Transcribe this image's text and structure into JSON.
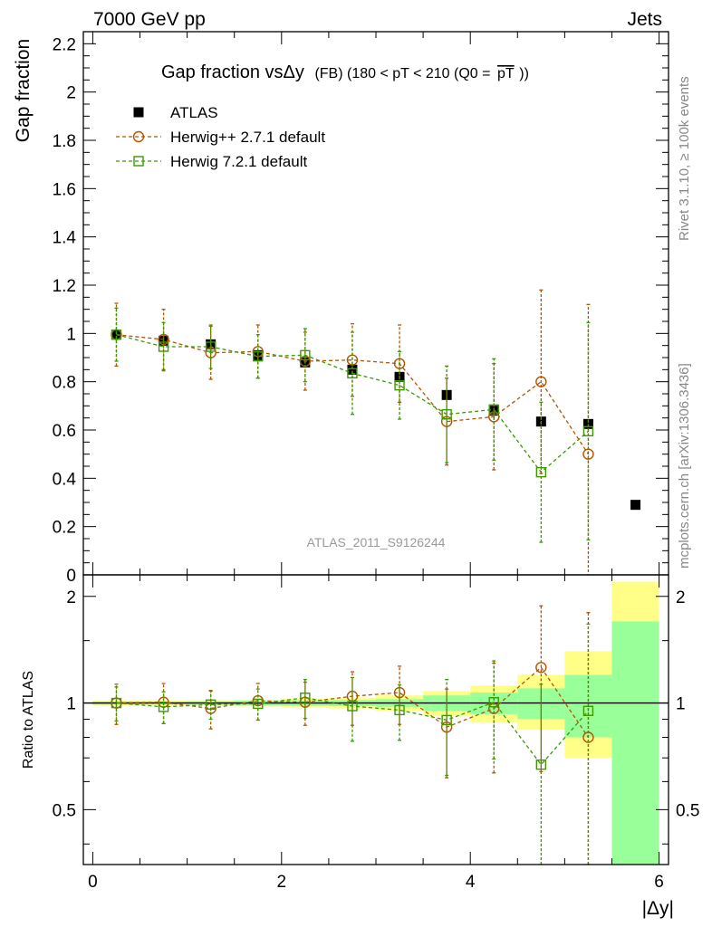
{
  "header": {
    "left": "7000 GeV pp",
    "right": "Jets"
  },
  "side_labels": {
    "rivet": "Rivet 3.1.10, ≥ 100k events",
    "mcplots": "mcplots.cern.ch [arXiv:1306.3436]"
  },
  "watermark": "ATLAS_2011_S9126244",
  "colors": {
    "data": "#000000",
    "herwigpp": "#b35400",
    "herwig7": "#3a9a00",
    "band_inner": "#99ff99",
    "band_outer": "#ffff88"
  },
  "chart_data": [
    {
      "type": "scatter",
      "panel": "main",
      "title_main": "Gap fraction vsΔy",
      "title_sub": "(FB) (180 < pT < 210 (Q0 =",
      "title_overline": "pT",
      "title_end": "))",
      "ylabel": "Gap fraction",
      "ylim": [
        0,
        2.25
      ],
      "xlim": [
        -0.1,
        6.1
      ],
      "yticks": [
        0,
        0.2,
        0.4,
        0.6,
        0.8,
        1,
        1.2,
        1.4,
        1.6,
        1.8,
        2,
        2.2
      ],
      "ytick_labels": [
        "0",
        "0.2",
        "0.4",
        "0.6",
        "0.8",
        "1",
        "1.2",
        "1.4",
        "1.6",
        "1.8",
        "2",
        "2.2"
      ],
      "legend_position": "top-left",
      "x": [
        0.25,
        0.75,
        1.25,
        1.75,
        2.25,
        2.75,
        3.25,
        3.75,
        4.25,
        4.75,
        5.25,
        5.75
      ],
      "series": [
        {
          "name": "ATLAS",
          "marker": "filled-square",
          "values": [
            0.995,
            0.97,
            0.955,
            0.91,
            0.88,
            0.85,
            0.82,
            0.745,
            0.68,
            0.635,
            0.625,
            0.29
          ],
          "err": [
            0.01,
            0.01,
            0.01,
            0.01,
            0.01,
            0.01,
            0.01,
            0.015,
            0.015,
            0.015,
            0.02,
            0.015
          ]
        },
        {
          "name": "Herwig++ 2.7.1 default",
          "marker": "open-circle",
          "values": [
            0.995,
            0.975,
            0.92,
            0.925,
            0.885,
            0.89,
            0.875,
            0.635,
            0.655,
            0.8,
            0.5
          ],
          "err": [
            0.13,
            0.125,
            0.11,
            0.11,
            0.12,
            0.15,
            0.16,
            0.18,
            0.22,
            0.38,
            0.62
          ]
        },
        {
          "name": "Herwig 7.2.1 default",
          "marker": "open-square",
          "values": [
            0.995,
            0.945,
            0.945,
            0.905,
            0.91,
            0.835,
            0.785,
            0.665,
            0.685,
            0.425,
            0.595
          ],
          "err": [
            0.11,
            0.1,
            0.09,
            0.09,
            0.11,
            0.17,
            0.14,
            0.2,
            0.21,
            0.29,
            0.45
          ]
        }
      ]
    },
    {
      "type": "scatter",
      "panel": "ratio",
      "ylabel": "Ratio to ATLAS",
      "xlabel": "|Δy|",
      "ylim": [
        0.35,
        2.3
      ],
      "log_y": true,
      "xlim": [
        -0.1,
        6.1
      ],
      "yticks": [
        0.5,
        1,
        2
      ],
      "ytick_labels": [
        "0.5",
        "1",
        "2"
      ],
      "xticks": [
        0,
        2,
        4,
        6
      ],
      "xtick_labels": [
        "0",
        "2",
        "4",
        "6"
      ],
      "x_edges": [
        0,
        0.5,
        1,
        1.5,
        2,
        2.5,
        3,
        3.5,
        4,
        4.5,
        5,
        5.5,
        6
      ],
      "band_inner": [
        0.01,
        0.01,
        0.012,
        0.015,
        0.018,
        0.02,
        0.025,
        0.05,
        0.07,
        0.1,
        0.2,
        0.7
      ],
      "band_outer": [
        0.015,
        0.016,
        0.018,
        0.022,
        0.028,
        0.035,
        0.05,
        0.08,
        0.12,
        0.2,
        0.4,
        1.2
      ],
      "band_outer_low": [
        0.015,
        0.016,
        0.018,
        0.022,
        0.028,
        0.035,
        0.05,
        0.08,
        0.12,
        0.16,
        0.3,
        0.62
      ],
      "x": [
        0.25,
        0.75,
        1.25,
        1.75,
        2.25,
        2.75,
        3.25,
        3.75,
        4.25,
        4.75,
        5.25
      ],
      "series": [
        {
          "name": "Herwig++ 2.7.1 default",
          "marker": "open-circle",
          "values": [
            1.0,
            1.005,
            0.965,
            1.015,
            1.005,
            1.045,
            1.07,
            0.855,
            0.965,
            1.26,
            0.8
          ],
          "err_up": [
            0.13,
            0.13,
            0.12,
            0.12,
            0.14,
            0.18,
            0.2,
            0.24,
            0.33,
            0.62,
            1.0
          ],
          "err_dn": [
            0.13,
            0.13,
            0.12,
            0.12,
            0.14,
            0.18,
            0.2,
            0.24,
            0.33,
            0.62,
            0.8
          ]
        },
        {
          "name": "Herwig 7.2.1 default",
          "marker": "open-square",
          "values": [
            1.0,
            0.975,
            0.99,
            0.995,
            1.035,
            0.98,
            0.955,
            0.895,
            1.005,
            0.67,
            0.95
          ],
          "err_up": [
            0.11,
            0.1,
            0.09,
            0.1,
            0.13,
            0.2,
            0.17,
            0.27,
            0.31,
            0.46,
            0.72
          ],
          "err_dn": [
            0.11,
            0.1,
            0.09,
            0.1,
            0.13,
            0.2,
            0.17,
            0.27,
            0.31,
            0.46,
            0.72
          ]
        }
      ]
    }
  ]
}
